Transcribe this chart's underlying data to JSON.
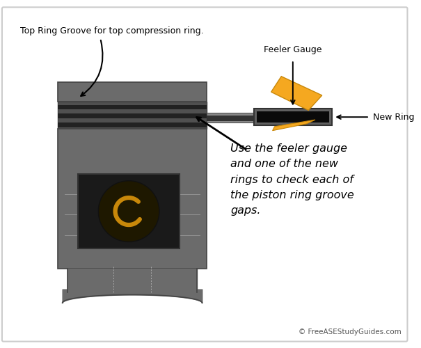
{
  "background_color": "#ffffff",
  "border_color": "#cccccc",
  "piston_color": "#6b6b6b",
  "piston_darker": "#444444",
  "groove_color": "#333333",
  "groove_band": "#505050",
  "black_color": "#111111",
  "orange_color": "#f5a820",
  "orange_dark": "#c8880a",
  "text_color": "#000000",
  "annotation_font_size": 9,
  "body_font_size": 11.5,
  "copyright_font_size": 7.5,
  "title_label": "Top Ring Groove for top compression ring.",
  "feeler_label": "Feeler Gauge",
  "new_ring_label": "New Ring",
  "body_text": "Use the feeler gauge\nand one of the new\nrings to check each of\nthe piston ring groove\ngaps.",
  "copyright_text": "© FreeASEStudyGuides.com"
}
